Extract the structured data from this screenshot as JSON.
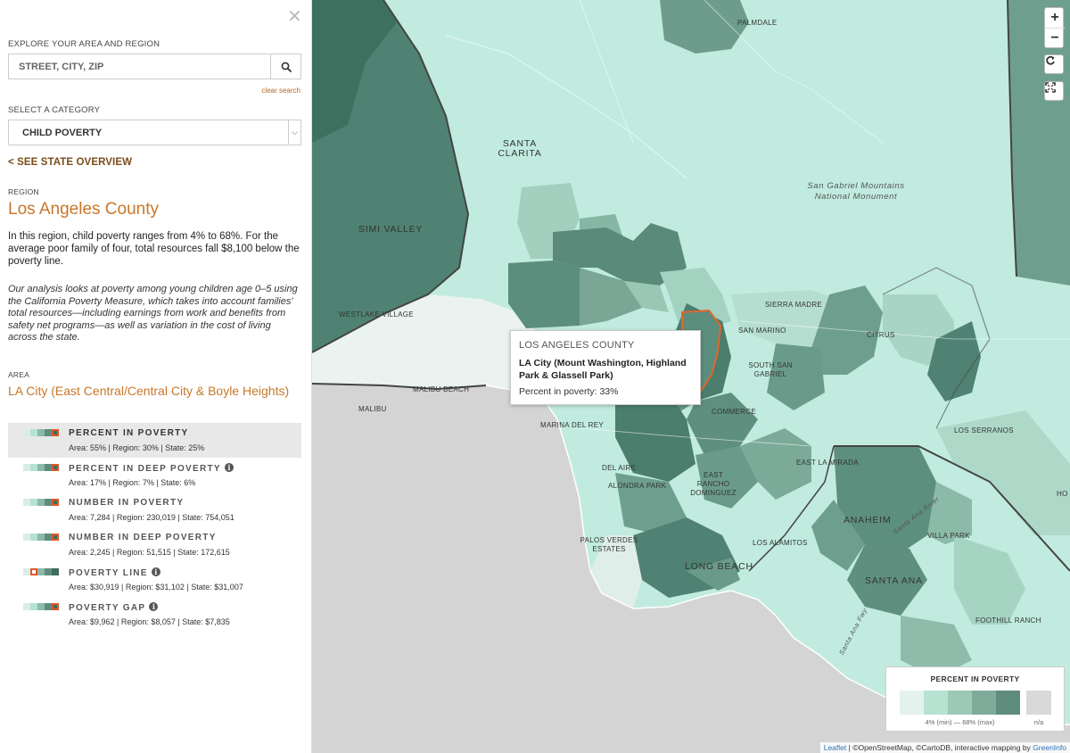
{
  "sidebar": {
    "close_icon": "close-icon",
    "explore_label": "EXPLORE YOUR AREA AND REGION",
    "search_placeholder": "STREET, CITY, ZIP",
    "search_icon": "search-icon",
    "clear_search": "clear search",
    "category_label": "SELECT A CATEGORY",
    "category_value": "CHILD POVERTY",
    "state_overview": "< SEE STATE OVERVIEW",
    "region_label": "REGION",
    "region_name": "Los Angeles County",
    "region_desc": "In this region, child poverty ranges from 4% to 68%. For the average poor family of four, total resources fall $8,100 below the poverty line.",
    "analysis_text": "Our analysis looks at poverty among young children age 0–5 using the California Poverty Measure, which takes into account families' total resources—including earnings from work and benefits from safety net programs—as well as variation in the cost of living across the state.",
    "area_label": "AREA",
    "area_name": "LA City (East Central/Central City & Boyle Heights)",
    "metrics": [
      {
        "title": "PERCENT IN POVERTY",
        "values": "Area: 55% | Region: 30% | State: 25%",
        "active": true,
        "info": false,
        "marker": 4
      },
      {
        "title": "PERCENT IN DEEP POVERTY",
        "values": "Area: 17% | Region: 7% | State: 6%",
        "active": false,
        "info": true,
        "marker": 4
      },
      {
        "title": "NUMBER IN POVERTY",
        "values": "Area: 7,284 | Region: 230,019 | State: 754,051",
        "active": false,
        "info": false,
        "marker": 4
      },
      {
        "title": "NUMBER IN DEEP POVERTY",
        "values": "Area: 2,245 | Region: 51,515 | State: 172,615",
        "active": false,
        "info": false,
        "marker": 4
      },
      {
        "title": "POVERTY LINE",
        "values": "Area: $30,919 | Region: $31,102 | State: $31,007",
        "active": false,
        "info": true,
        "marker": 1
      },
      {
        "title": "POVERTY GAP",
        "values": "Area: $9,962 | Region: $8,057 | State: $7,835",
        "active": false,
        "info": true,
        "marker": 4
      }
    ]
  },
  "map": {
    "zoom_in": "+",
    "zoom_out": "−",
    "reset_icon": "reset-view-icon",
    "fullscreen_icon": "fullscreen-icon",
    "place_labels": [
      "PALMDALE",
      "SANTA CLARITA",
      "SIMI VALLEY",
      "WESTLAKE VILLAGE",
      "MALIBU BEACH",
      "MALIBU",
      "MARINA DEL REY",
      "DEL AIRE",
      "ALONDRA PARK",
      "EAST RANCHO DOMINGUEZ",
      "PALOS VERDES ESTATES",
      "LONG BEACH",
      "LOS ALAMITOS",
      "ANAHEIM",
      "SANTA ANA",
      "VILLA PARK",
      "FOOTHILL RANCH",
      "LOS SERRANOS",
      "EAST LA MIRADA",
      "SIERRA MADRE",
      "SAN MARINO",
      "CITRUS",
      "SOUTH SAN GABRIEL",
      "COMMERCE",
      "San Gabriel Mountains National Monument",
      "Santa Ana River",
      "Santa Ana Fwy",
      "HO"
    ],
    "tooltip": {
      "county": "LOS ANGELES COUNTY",
      "area": "LA City (Mount Washington, Highland Park & Glassell Park)",
      "value": "Percent in poverty: 33%"
    },
    "legend": {
      "title": "PERCENT IN POVERTY",
      "range": "4% (min) — 68% (max)",
      "na": "n/a",
      "colors": [
        "#e3f2ec",
        "#b6e2d1",
        "#9cc8b6",
        "#7fab9b",
        "#5f8d7d"
      ],
      "na_color": "#d9d9d9"
    },
    "attribution": {
      "leaflet": "Leaflet",
      "osm": "| ©OpenStreetMap, ©CartoDB, interactive mapping by ",
      "greeninfo": "GreenInfo"
    }
  },
  "colors": {
    "accent": "#c8772a",
    "highlight_outline": "#e0672c",
    "swatch_marker": "#e0572a"
  }
}
